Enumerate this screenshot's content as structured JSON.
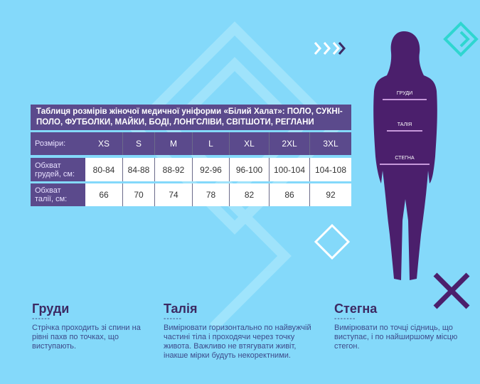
{
  "table": {
    "title": "Таблиця розмірів жіночої медичної уніформи «Білий Халат»: ПОЛО, СУКНІ-ПОЛО, ФУТБОЛКИ, МАЙКИ, БОДІ, ЛОНГСЛІВИ, СВІТШОТИ, РЕГЛАНИ",
    "sizes_label": "Розміри:",
    "sizes": [
      "XS",
      "S",
      "M",
      "L",
      "XL",
      "2XL",
      "3XL"
    ],
    "chest_label": "Обхват грудей, см:",
    "chest": [
      "80-84",
      "84-88",
      "88-92",
      "92-96",
      "96-100",
      "100-104",
      "104-108"
    ],
    "waist_label": "Обхват талії, см:",
    "waist": [
      "66",
      "70",
      "74",
      "78",
      "82",
      "86",
      "92"
    ]
  },
  "figure": {
    "chest": "ГРУДИ",
    "waist": "ТАЛІЯ",
    "hips": "СТЕГНА"
  },
  "info": [
    {
      "title": "Груди",
      "text": "Стрічка проходить зі спини на рівні пахв по точках, що виступають."
    },
    {
      "title": "Талія",
      "text": "Вимірювати горизонтально по найвужчій частині тіла і проходячи через точку живота. Важливо не втягувати живіт, інакше мірки будуть некоректними."
    },
    {
      "title": "Стегна",
      "text": "Вимірювати по точці сідниць, що виступає, і по найширшому місцю стегон."
    }
  ],
  "colors": {
    "background": "#84d9fa",
    "panel": "#5b4a8c",
    "silhouette": "#4b1f6c",
    "accent": "#2fd6d0"
  }
}
